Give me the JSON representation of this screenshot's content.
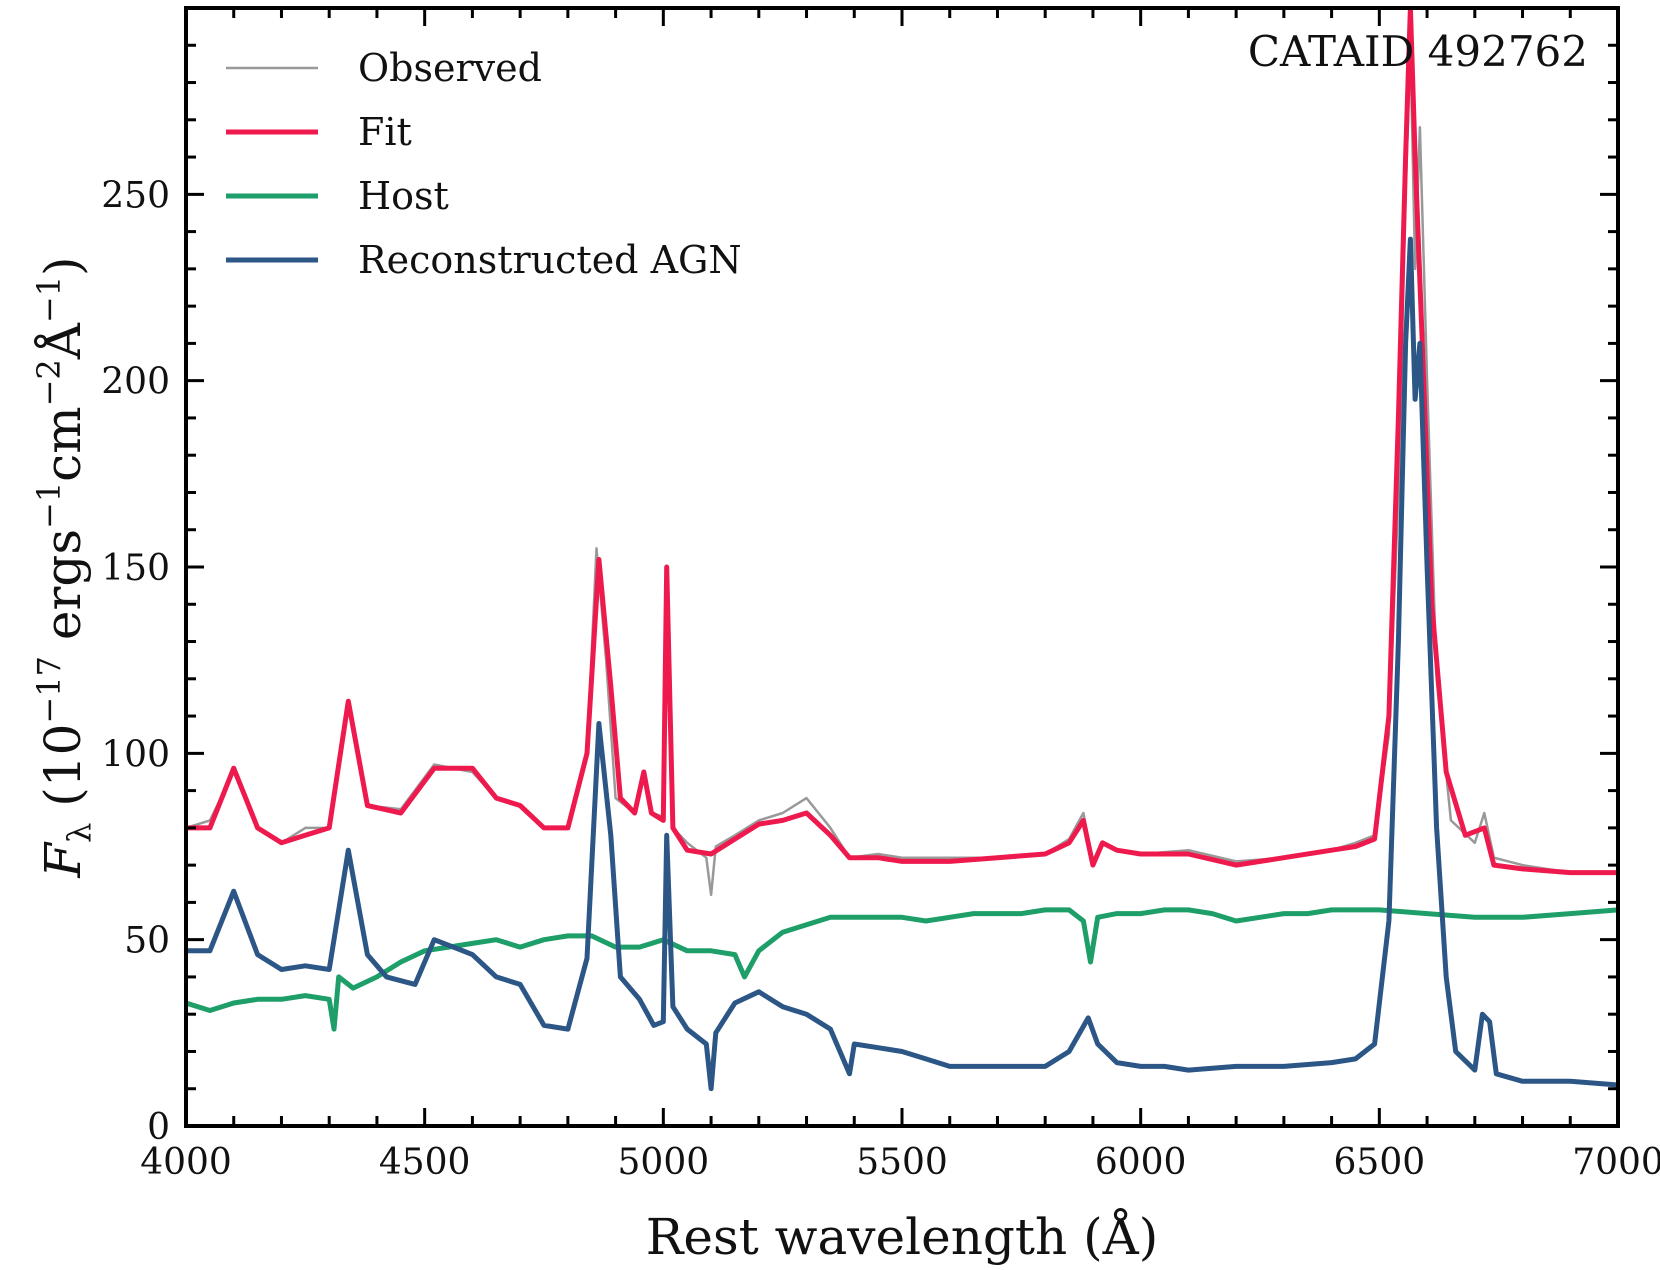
{
  "chart_data": {
    "type": "line",
    "annotation": "CATAID 492762",
    "xlabel": "Rest wavelength (Å)",
    "ylabel": {
      "symbol": "F",
      "sub": "λ",
      "lead": " (10",
      "exp1": "−17",
      "unit1": " ergs",
      "exp2": "−1",
      "unit2": "cm",
      "exp3": "−2",
      "unit3": "Å",
      "exp4": "−1",
      "trail": ")"
    },
    "xlim": [
      4000,
      7000
    ],
    "ylim": [
      0,
      300
    ],
    "xticks": [
      4000,
      4500,
      5000,
      5500,
      6000,
      6500,
      7000
    ],
    "yticks": [
      0,
      50,
      100,
      150,
      200,
      250
    ],
    "grid": false,
    "legend_position": "top-left",
    "series": [
      {
        "name": "Observed",
        "color": "#999999",
        "points": [
          [
            4000,
            80
          ],
          [
            4050,
            82
          ],
          [
            4100,
            95
          ],
          [
            4150,
            80
          ],
          [
            4200,
            76
          ],
          [
            4250,
            80
          ],
          [
            4300,
            80
          ],
          [
            4340,
            113
          ],
          [
            4380,
            86
          ],
          [
            4450,
            85
          ],
          [
            4520,
            97
          ],
          [
            4600,
            95
          ],
          [
            4650,
            88
          ],
          [
            4700,
            86
          ],
          [
            4750,
            80
          ],
          [
            4800,
            80
          ],
          [
            4840,
            100
          ],
          [
            4860,
            155
          ],
          [
            4880,
            125
          ],
          [
            4900,
            88
          ],
          [
            4940,
            84
          ],
          [
            4959,
            95
          ],
          [
            4975,
            84
          ],
          [
            5000,
            83
          ],
          [
            5007,
            150
          ],
          [
            5020,
            80
          ],
          [
            5050,
            76
          ],
          [
            5090,
            72
          ],
          [
            5100,
            62
          ],
          [
            5110,
            75
          ],
          [
            5150,
            78
          ],
          [
            5200,
            82
          ],
          [
            5250,
            84
          ],
          [
            5300,
            88
          ],
          [
            5350,
            80
          ],
          [
            5390,
            72
          ],
          [
            5450,
            73
          ],
          [
            5500,
            72
          ],
          [
            5600,
            72
          ],
          [
            5700,
            72
          ],
          [
            5800,
            73
          ],
          [
            5850,
            77
          ],
          [
            5880,
            84
          ],
          [
            5900,
            70
          ],
          [
            5920,
            76
          ],
          [
            5950,
            74
          ],
          [
            6000,
            73
          ],
          [
            6100,
            74
          ],
          [
            6200,
            71
          ],
          [
            6300,
            72
          ],
          [
            6400,
            74
          ],
          [
            6450,
            76
          ],
          [
            6490,
            78
          ],
          [
            6520,
            105
          ],
          [
            6540,
            170
          ],
          [
            6555,
            250
          ],
          [
            6565,
            290
          ],
          [
            6575,
            230
          ],
          [
            6585,
            268
          ],
          [
            6600,
            200
          ],
          [
            6620,
            120
          ],
          [
            6650,
            82
          ],
          [
            6700,
            76
          ],
          [
            6720,
            84
          ],
          [
            6740,
            72
          ],
          [
            6800,
            70
          ],
          [
            6900,
            68
          ],
          [
            7000,
            68
          ]
        ]
      },
      {
        "name": "Fit",
        "color": "#ee1a4e",
        "points": [
          [
            4000,
            80
          ],
          [
            4050,
            80
          ],
          [
            4100,
            96
          ],
          [
            4150,
            80
          ],
          [
            4200,
            76
          ],
          [
            4250,
            78
          ],
          [
            4300,
            80
          ],
          [
            4340,
            114
          ],
          [
            4380,
            86
          ],
          [
            4450,
            84
          ],
          [
            4520,
            96
          ],
          [
            4600,
            96
          ],
          [
            4650,
            88
          ],
          [
            4700,
            86
          ],
          [
            4750,
            80
          ],
          [
            4800,
            80
          ],
          [
            4840,
            100
          ],
          [
            4865,
            152
          ],
          [
            4890,
            118
          ],
          [
            4910,
            88
          ],
          [
            4940,
            84
          ],
          [
            4959,
            95
          ],
          [
            4975,
            84
          ],
          [
            5000,
            82
          ],
          [
            5007,
            150
          ],
          [
            5020,
            80
          ],
          [
            5050,
            74
          ],
          [
            5100,
            73
          ],
          [
            5150,
            77
          ],
          [
            5200,
            81
          ],
          [
            5250,
            82
          ],
          [
            5300,
            84
          ],
          [
            5350,
            78
          ],
          [
            5390,
            72
          ],
          [
            5450,
            72
          ],
          [
            5500,
            71
          ],
          [
            5600,
            71
          ],
          [
            5700,
            72
          ],
          [
            5800,
            73
          ],
          [
            5850,
            76
          ],
          [
            5880,
            82
          ],
          [
            5900,
            70
          ],
          [
            5920,
            76
          ],
          [
            5950,
            74
          ],
          [
            6000,
            73
          ],
          [
            6100,
            73
          ],
          [
            6200,
            70
          ],
          [
            6300,
            72
          ],
          [
            6400,
            74
          ],
          [
            6450,
            75
          ],
          [
            6490,
            77
          ],
          [
            6520,
            110
          ],
          [
            6540,
            190
          ],
          [
            6555,
            260
          ],
          [
            6565,
            300
          ],
          [
            6575,
            260
          ],
          [
            6590,
            210
          ],
          [
            6610,
            140
          ],
          [
            6640,
            95
          ],
          [
            6680,
            78
          ],
          [
            6720,
            80
          ],
          [
            6740,
            70
          ],
          [
            6800,
            69
          ],
          [
            6900,
            68
          ],
          [
            7000,
            68
          ]
        ]
      },
      {
        "name": "Host",
        "color": "#1e9e68",
        "points": [
          [
            4000,
            33
          ],
          [
            4050,
            31
          ],
          [
            4100,
            33
          ],
          [
            4150,
            34
          ],
          [
            4200,
            34
          ],
          [
            4250,
            35
          ],
          [
            4300,
            34
          ],
          [
            4310,
            26
          ],
          [
            4320,
            40
          ],
          [
            4350,
            37
          ],
          [
            4400,
            40
          ],
          [
            4450,
            44
          ],
          [
            4500,
            47
          ],
          [
            4550,
            48
          ],
          [
            4600,
            49
          ],
          [
            4650,
            50
          ],
          [
            4700,
            48
          ],
          [
            4750,
            50
          ],
          [
            4800,
            51
          ],
          [
            4850,
            51
          ],
          [
            4900,
            48
          ],
          [
            4950,
            48
          ],
          [
            5000,
            50
          ],
          [
            5050,
            47
          ],
          [
            5100,
            47
          ],
          [
            5150,
            46
          ],
          [
            5170,
            40
          ],
          [
            5200,
            47
          ],
          [
            5250,
            52
          ],
          [
            5300,
            54
          ],
          [
            5350,
            56
          ],
          [
            5400,
            56
          ],
          [
            5450,
            56
          ],
          [
            5500,
            56
          ],
          [
            5550,
            55
          ],
          [
            5600,
            56
          ],
          [
            5650,
            57
          ],
          [
            5700,
            57
          ],
          [
            5750,
            57
          ],
          [
            5800,
            58
          ],
          [
            5850,
            58
          ],
          [
            5880,
            55
          ],
          [
            5895,
            44
          ],
          [
            5910,
            56
          ],
          [
            5950,
            57
          ],
          [
            6000,
            57
          ],
          [
            6050,
            58
          ],
          [
            6100,
            58
          ],
          [
            6150,
            57
          ],
          [
            6200,
            55
          ],
          [
            6250,
            56
          ],
          [
            6300,
            57
          ],
          [
            6350,
            57
          ],
          [
            6400,
            58
          ],
          [
            6450,
            58
          ],
          [
            6500,
            58
          ],
          [
            6600,
            57
          ],
          [
            6700,
            56
          ],
          [
            6800,
            56
          ],
          [
            6900,
            57
          ],
          [
            7000,
            58
          ]
        ]
      },
      {
        "name": "Reconstructed AGN",
        "color": "#2c5686",
        "points": [
          [
            4000,
            47
          ],
          [
            4050,
            47
          ],
          [
            4100,
            63
          ],
          [
            4150,
            46
          ],
          [
            4200,
            42
          ],
          [
            4250,
            43
          ],
          [
            4300,
            42
          ],
          [
            4340,
            74
          ],
          [
            4380,
            46
          ],
          [
            4420,
            40
          ],
          [
            4480,
            38
          ],
          [
            4520,
            50
          ],
          [
            4560,
            48
          ],
          [
            4600,
            46
          ],
          [
            4650,
            40
          ],
          [
            4700,
            38
          ],
          [
            4750,
            27
          ],
          [
            4800,
            26
          ],
          [
            4840,
            45
          ],
          [
            4865,
            108
          ],
          [
            4890,
            78
          ],
          [
            4910,
            40
          ],
          [
            4950,
            34
          ],
          [
            4980,
            27
          ],
          [
            5000,
            28
          ],
          [
            5007,
            78
          ],
          [
            5020,
            32
          ],
          [
            5050,
            26
          ],
          [
            5090,
            22
          ],
          [
            5100,
            10
          ],
          [
            5110,
            25
          ],
          [
            5150,
            33
          ],
          [
            5200,
            36
          ],
          [
            5250,
            32
          ],
          [
            5300,
            30
          ],
          [
            5350,
            26
          ],
          [
            5390,
            14
          ],
          [
            5400,
            22
          ],
          [
            5450,
            21
          ],
          [
            5500,
            20
          ],
          [
            5550,
            18
          ],
          [
            5600,
            16
          ],
          [
            5700,
            16
          ],
          [
            5800,
            16
          ],
          [
            5850,
            20
          ],
          [
            5890,
            29
          ],
          [
            5910,
            22
          ],
          [
            5950,
            17
          ],
          [
            6000,
            16
          ],
          [
            6050,
            16
          ],
          [
            6100,
            15
          ],
          [
            6200,
            16
          ],
          [
            6300,
            16
          ],
          [
            6400,
            17
          ],
          [
            6450,
            18
          ],
          [
            6490,
            22
          ],
          [
            6520,
            55
          ],
          [
            6540,
            130
          ],
          [
            6555,
            210
          ],
          [
            6565,
            238
          ],
          [
            6575,
            195
          ],
          [
            6585,
            210
          ],
          [
            6600,
            150
          ],
          [
            6620,
            80
          ],
          [
            6640,
            40
          ],
          [
            6660,
            20
          ],
          [
            6700,
            15
          ],
          [
            6716,
            30
          ],
          [
            6731,
            28
          ],
          [
            6745,
            14
          ],
          [
            6800,
            12
          ],
          [
            6900,
            12
          ],
          [
            7000,
            11
          ]
        ]
      }
    ]
  }
}
